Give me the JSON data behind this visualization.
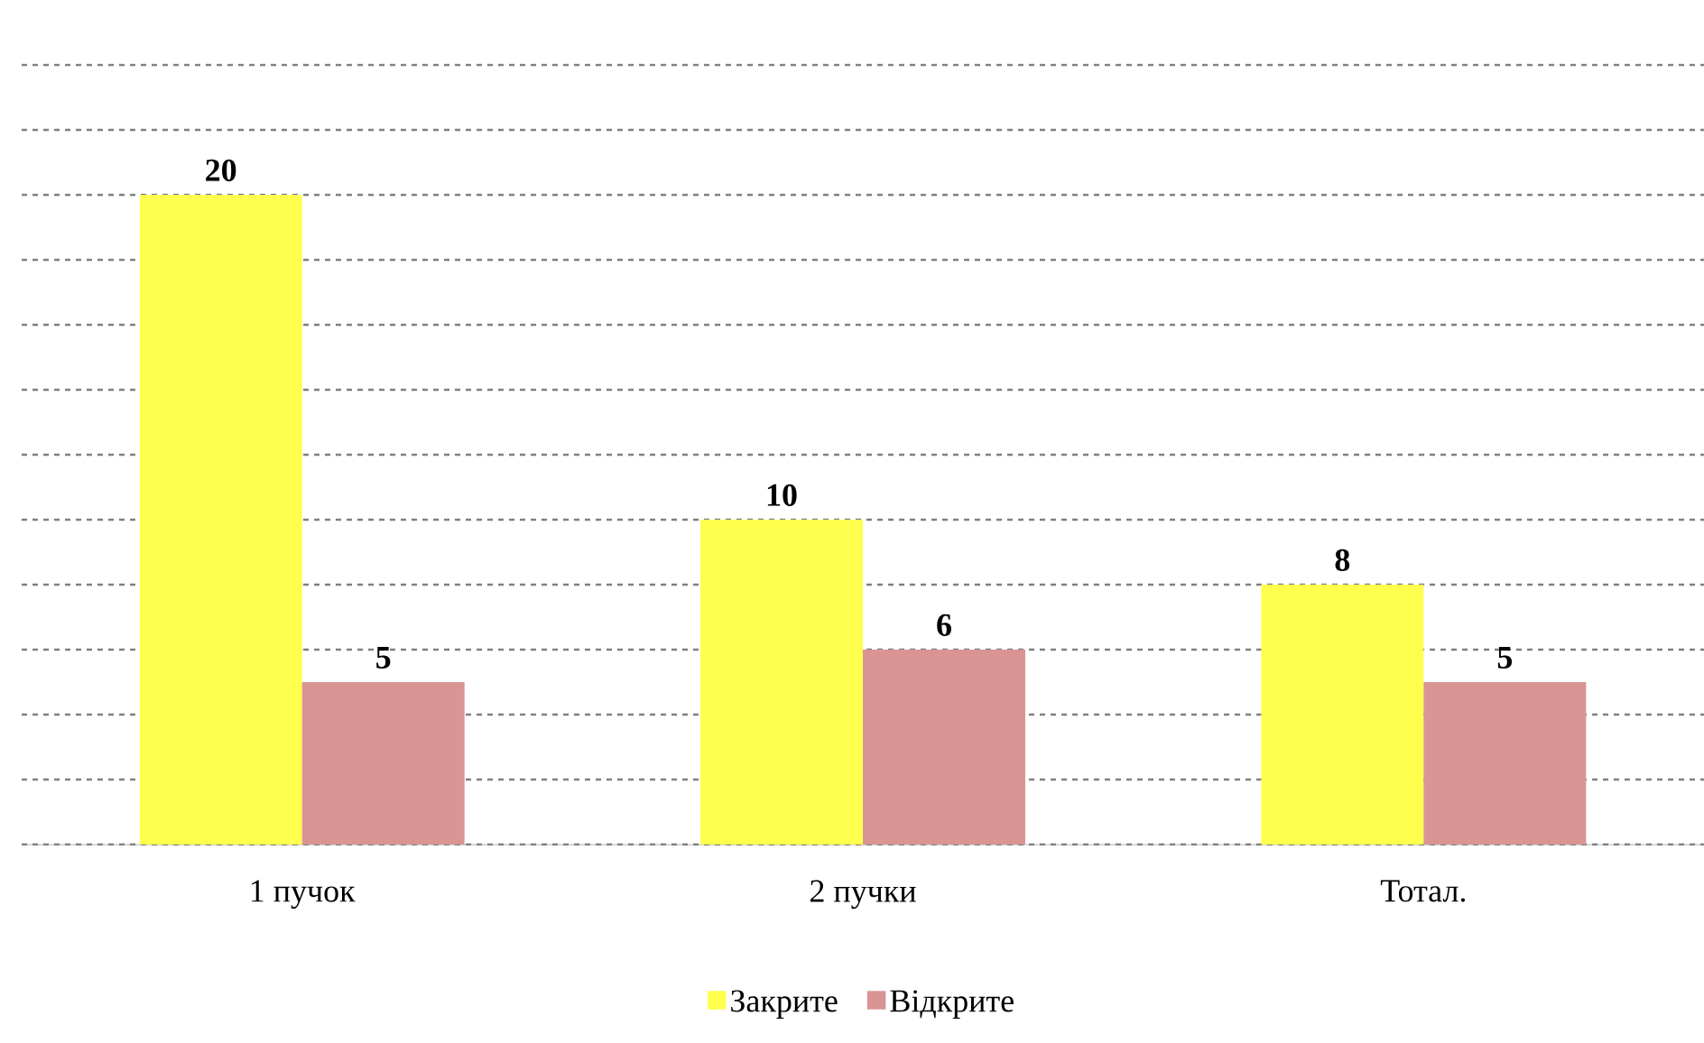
{
  "chart_data": {
    "type": "bar",
    "categories": [
      "1 пучок",
      "2 пучки",
      "Тотал."
    ],
    "series": [
      {
        "name": "Закрите",
        "color": "#ffff4d",
        "values": [
          20,
          10,
          8
        ]
      },
      {
        "name": "Відкрите",
        "color": "#d99594",
        "values": [
          5,
          6,
          5
        ]
      }
    ],
    "tick_labels": "x",
    "grid": "y",
    "data_labels": true,
    "legend": "bottom"
  }
}
